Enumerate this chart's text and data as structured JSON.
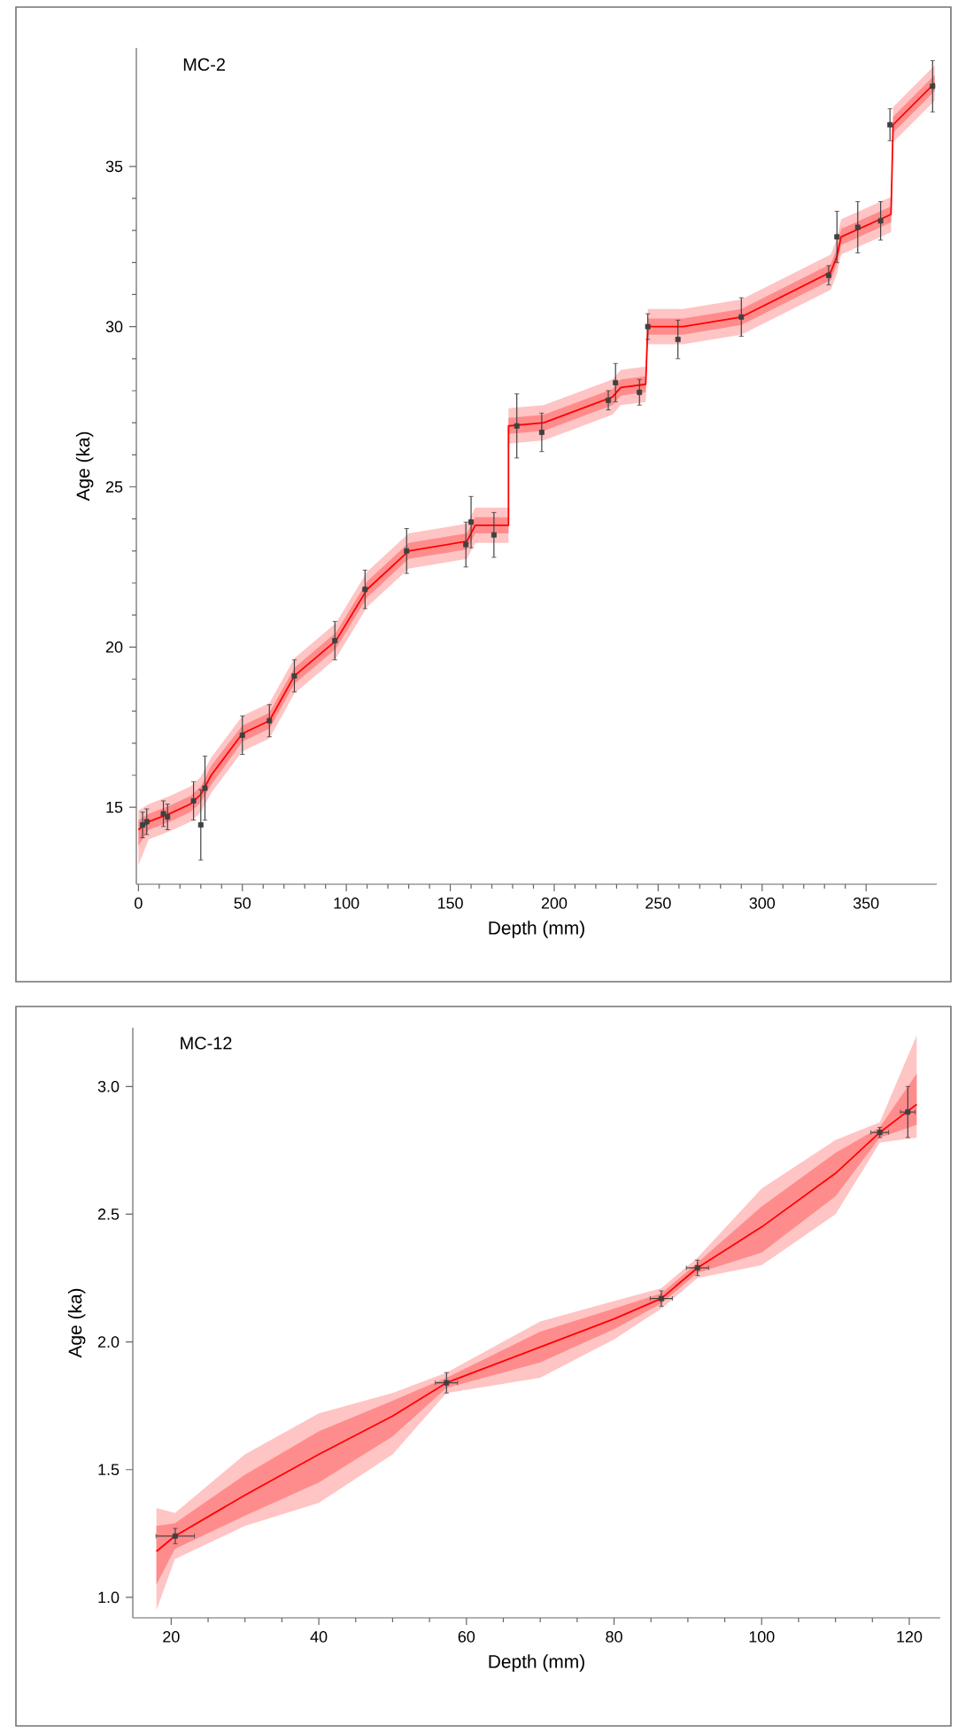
{
  "chart_data": [
    {
      "type": "line",
      "title": "MC-2",
      "xlabel": "Depth (mm)",
      "ylabel": "Age (ka)",
      "xlim": [
        -1,
        384
      ],
      "ylim": [
        12.6,
        38.7
      ],
      "xticks": [
        0,
        50,
        100,
        150,
        200,
        250,
        300,
        350
      ],
      "yticks": [
        15,
        20,
        25,
        30,
        35
      ],
      "series": [
        {
          "color": "#ffc4c4",
          "x": [
            0,
            5,
            15,
            25,
            30,
            35,
            50,
            63,
            75,
            95,
            110,
            130,
            158,
            162,
            178,
            178,
            195,
            228,
            232,
            244,
            245,
            262,
            290,
            333,
            336,
            338,
            362,
            363,
            383
          ],
          "values": [
            null,
            null,
            null,
            null,
            null,
            null,
            null,
            null,
            null,
            null,
            null,
            null,
            null,
            null,
            null,
            null,
            null,
            null,
            null,
            null,
            null,
            null,
            null,
            null,
            null,
            null,
            null,
            null,
            null
          ],
          "lower": [
            13.2,
            14.0,
            14.25,
            14.55,
            14.85,
            15.45,
            16.75,
            17.15,
            18.55,
            19.65,
            21.25,
            22.45,
            22.75,
            23.25,
            23.25,
            26.35,
            26.45,
            27.25,
            27.55,
            27.65,
            29.45,
            29.45,
            29.75,
            31.15,
            31.65,
            32.25,
            32.95,
            35.75,
            37.05
          ],
          "upper": [
            14.9,
            15.1,
            15.35,
            15.65,
            15.95,
            16.55,
            17.85,
            18.25,
            19.65,
            20.75,
            22.35,
            23.55,
            23.85,
            24.35,
            24.35,
            27.45,
            27.55,
            28.35,
            28.65,
            28.75,
            30.55,
            30.55,
            30.85,
            32.25,
            32.75,
            33.35,
            34.05,
            36.85,
            38.15
          ]
        },
        {
          "color": "#ff0000",
          "x": [
            0,
            5,
            15,
            25,
            30,
            35,
            50,
            63,
            75,
            95,
            110,
            130,
            158,
            162,
            178,
            178,
            195,
            228,
            232,
            244,
            245,
            262,
            290,
            333,
            336,
            338,
            362,
            363,
            383
          ],
          "values": [
            14.3,
            14.55,
            14.8,
            15.1,
            15.4,
            16.0,
            17.3,
            17.7,
            19.1,
            20.2,
            21.8,
            23.0,
            23.3,
            23.8,
            23.8,
            26.9,
            27.0,
            27.8,
            28.1,
            28.2,
            30.0,
            30.0,
            30.3,
            31.7,
            32.2,
            32.8,
            33.5,
            36.3,
            37.6
          ],
          "lower": [
            13.8,
            14.3,
            14.55,
            14.85,
            15.15,
            15.7,
            17.05,
            17.45,
            18.85,
            19.95,
            21.55,
            22.75,
            23.05,
            23.55,
            23.55,
            26.65,
            26.75,
            27.55,
            27.85,
            27.95,
            29.75,
            29.75,
            30.05,
            31.45,
            31.95,
            32.55,
            33.25,
            36.05,
            37.35
          ],
          "upper": [
            14.6,
            14.8,
            15.05,
            15.35,
            15.65,
            16.3,
            17.55,
            17.95,
            19.35,
            20.45,
            22.05,
            23.25,
            23.55,
            24.05,
            24.05,
            27.15,
            27.25,
            28.05,
            28.35,
            28.45,
            30.25,
            30.25,
            30.55,
            31.95,
            32.45,
            33.05,
            33.75,
            36.55,
            37.85
          ]
        },
        {
          "type": "scatter",
          "marker": "square",
          "color": "#404040",
          "x": [
            2,
            4,
            12,
            14,
            26.5,
            30,
            32,
            50,
            63,
            75,
            94.5,
            109,
            129,
            157.5,
            160,
            171,
            182,
            194,
            226,
            229.5,
            241,
            245,
            259.5,
            290,
            332,
            336,
            346,
            357,
            361.5,
            382
          ],
          "values": [
            14.45,
            14.55,
            14.8,
            14.7,
            15.2,
            14.45,
            15.6,
            17.25,
            17.7,
            19.1,
            20.2,
            21.8,
            23.0,
            23.2,
            23.9,
            23.5,
            26.9,
            26.7,
            27.7,
            28.25,
            27.95,
            30.0,
            29.6,
            30.3,
            31.6,
            32.8,
            33.1,
            33.3,
            36.3,
            37.5
          ],
          "errors": [
            0.4,
            0.4,
            0.4,
            0.4,
            0.6,
            1.1,
            1.0,
            0.6,
            0.5,
            0.5,
            0.6,
            0.6,
            0.7,
            0.7,
            0.8,
            0.7,
            1.0,
            0.6,
            0.3,
            0.6,
            0.4,
            0.4,
            0.6,
            0.6,
            0.3,
            0.8,
            0.8,
            0.6,
            0.5,
            0.8
          ]
        }
      ]
    },
    {
      "type": "line",
      "title": "MC-12",
      "xlabel": "Depth (mm)",
      "ylabel": "Age (ka)",
      "xlim": [
        14.8,
        124.2
      ],
      "ylim": [
        0.92,
        3.23
      ],
      "xticks": [
        20,
        40,
        60,
        80,
        100,
        120
      ],
      "yticks": [
        {
          "value": 1,
          "label": "1.0"
        },
        {
          "value": 1.5,
          "label": "1.5"
        },
        {
          "value": 2,
          "label": "2.0"
        },
        {
          "value": 2.5,
          "label": "2.5"
        },
        {
          "value": 3,
          "label": "3.0"
        }
      ],
      "series": [
        {
          "color": "#ffc4c4",
          "x": [
            18,
            20.5,
            30,
            40,
            50,
            57.3,
            70,
            80,
            86.4,
            91.3,
            100,
            110,
            116,
            121
          ],
          "values": [
            null,
            null,
            null,
            null,
            null,
            null,
            null,
            null,
            null,
            null,
            null,
            null,
            null,
            null
          ],
          "lower": [
            0.95,
            1.15,
            1.28,
            1.37,
            1.56,
            1.8,
            1.86,
            2.01,
            2.13,
            2.25,
            2.3,
            2.5,
            2.78,
            2.8
          ],
          "upper": [
            1.35,
            1.33,
            1.56,
            1.72,
            1.8,
            1.88,
            2.08,
            2.16,
            2.21,
            2.33,
            2.6,
            2.79,
            2.86,
            3.2
          ]
        },
        {
          "color": "#ff0000",
          "x": [
            18,
            20.5,
            30,
            40,
            50,
            57.3,
            70,
            80,
            86.4,
            91.3,
            100,
            110,
            116,
            121
          ],
          "values": [
            1.18,
            1.24,
            1.4,
            1.56,
            1.71,
            1.84,
            1.98,
            2.09,
            2.17,
            2.29,
            2.45,
            2.66,
            2.82,
            2.93
          ],
          "lower": [
            1.05,
            1.19,
            1.32,
            1.45,
            1.63,
            1.82,
            1.92,
            2.05,
            2.15,
            2.27,
            2.35,
            2.57,
            2.8,
            2.85
          ],
          "upper": [
            1.28,
            1.29,
            1.48,
            1.65,
            1.77,
            1.86,
            2.04,
            2.13,
            2.19,
            2.31,
            2.53,
            2.74,
            2.84,
            3.05
          ]
        },
        {
          "type": "scatter",
          "marker": "square",
          "color": "#404040",
          "x": [
            20.55,
            57.3,
            86.4,
            91.3,
            116,
            119.8
          ],
          "values": [
            1.24,
            1.84,
            2.17,
            2.29,
            2.82,
            2.9
          ],
          "errors": [
            0.03,
            0.04,
            0.03,
            0.03,
            0.02,
            0.1
          ],
          "xerrors": [
            2.6,
            1.5,
            1.5,
            1.5,
            1.2,
            1.0
          ]
        }
      ]
    }
  ]
}
